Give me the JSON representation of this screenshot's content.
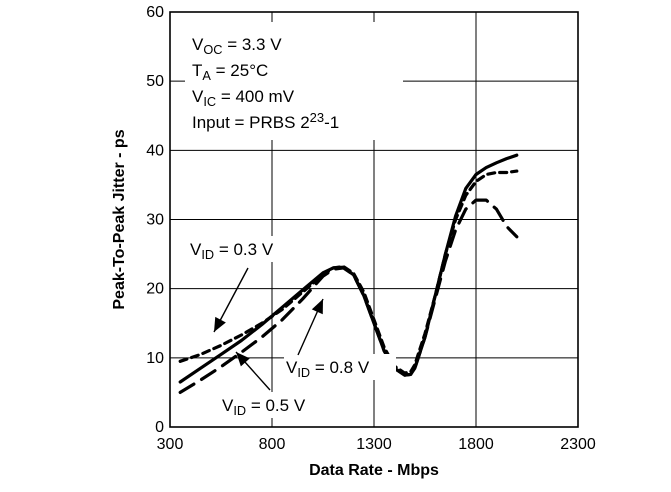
{
  "chart_data": {
    "type": "line",
    "xlabel": "Data Rate - Mbps",
    "ylabel": "Peak-To-Peak Jitter - ps",
    "xlim": [
      300,
      2300
    ],
    "ylim": [
      0,
      60
    ],
    "xticks": [
      300,
      800,
      1300,
      1800,
      2300
    ],
    "yticks": [
      0,
      10,
      20,
      30,
      40,
      50,
      60
    ],
    "grid": true,
    "conditions": [
      {
        "sym": "V",
        "sub": "OC",
        "rest": " = 3.3 V"
      },
      {
        "sym": "T",
        "sub": "A",
        "rest": " = 25°C"
      },
      {
        "sym": "V",
        "sub": "IC",
        "rest": " = 400 mV"
      },
      {
        "pre": "Input = PRBS  2",
        "sup": "23",
        "post": "-1"
      }
    ],
    "series": [
      {
        "name": "VID = 0.3 V",
        "label": {
          "sym": "V",
          "sub": "ID",
          "rest": " = 0.3 V"
        },
        "style": "dashed",
        "x": [
          350,
          450,
          550,
          650,
          750,
          850,
          950,
          1050,
          1100,
          1150,
          1200,
          1250,
          1300,
          1350,
          1400,
          1450,
          1480,
          1500,
          1550,
          1600,
          1650,
          1700,
          1750,
          1800,
          1850,
          1900,
          1950,
          2000
        ],
        "y": [
          9.5,
          10.5,
          11.8,
          13.3,
          15.0,
          17.0,
          19.5,
          22.0,
          23.0,
          23.2,
          22.2,
          19.5,
          15.5,
          11.5,
          8.8,
          7.8,
          8.0,
          9.0,
          13.5,
          19.0,
          25.0,
          30.0,
          33.5,
          35.5,
          36.5,
          36.8,
          36.8,
          37.0
        ]
      },
      {
        "name": "VID = 0.5 V",
        "label": {
          "sym": "V",
          "sub": "ID",
          "rest": " = 0.5 V"
        },
        "style": "solid",
        "x": [
          350,
          450,
          550,
          650,
          750,
          850,
          950,
          1050,
          1100,
          1150,
          1200,
          1250,
          1300,
          1350,
          1400,
          1450,
          1480,
          1500,
          1550,
          1600,
          1650,
          1700,
          1750,
          1800,
          1850,
          1900,
          1950,
          2000
        ],
        "y": [
          6.5,
          8.5,
          10.5,
          12.5,
          14.8,
          17.3,
          19.8,
          22.3,
          23.0,
          23.1,
          22.0,
          19.0,
          15.0,
          11.0,
          8.5,
          7.5,
          7.6,
          8.5,
          13.0,
          19.0,
          25.0,
          30.5,
          34.5,
          36.5,
          37.5,
          38.2,
          38.8,
          39.3
        ]
      },
      {
        "name": "VID = 0.8 V",
        "label": {
          "sym": "V",
          "sub": "ID",
          "rest": " = 0.8 V"
        },
        "style": "long-dashed",
        "x": [
          350,
          450,
          550,
          650,
          750,
          850,
          950,
          1050,
          1100,
          1150,
          1200,
          1250,
          1300,
          1350,
          1400,
          1450,
          1480,
          1500,
          1550,
          1600,
          1650,
          1700,
          1750,
          1800,
          1850,
          1900,
          1950,
          2000
        ],
        "y": [
          5.0,
          6.8,
          8.7,
          10.8,
          13.0,
          15.5,
          18.5,
          21.8,
          22.8,
          23.0,
          22.0,
          19.0,
          15.0,
          11.0,
          8.5,
          7.5,
          7.6,
          8.5,
          13.0,
          18.5,
          24.0,
          28.5,
          31.5,
          32.8,
          32.8,
          31.5,
          29.0,
          27.5
        ]
      }
    ]
  }
}
